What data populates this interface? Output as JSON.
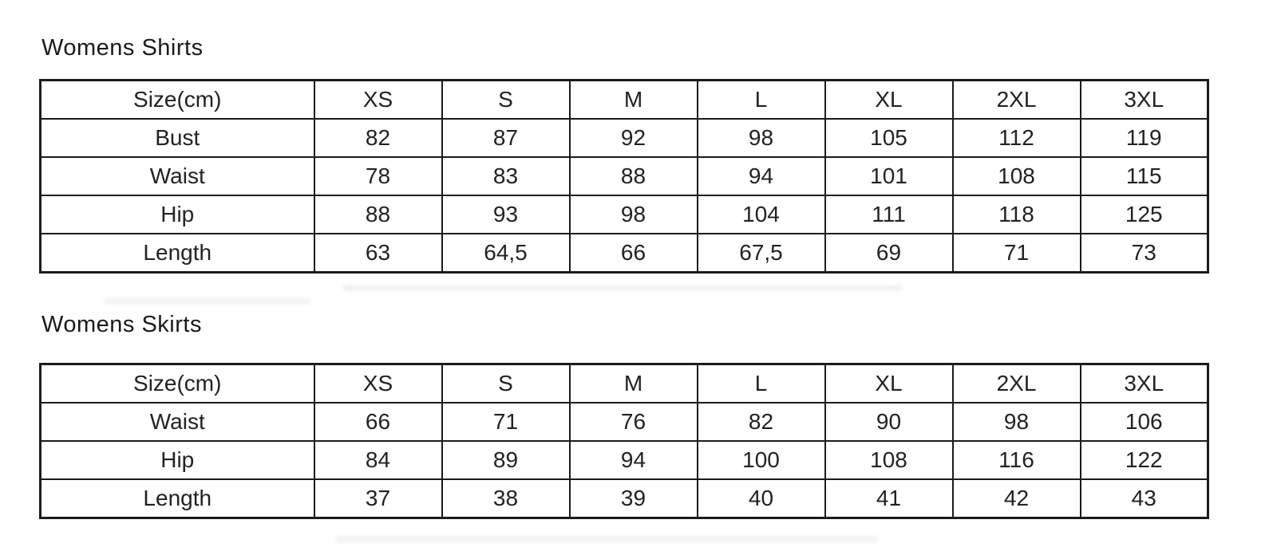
{
  "colors": {
    "background": "#ffffff",
    "text": "#222222",
    "border": "#1b1b1b"
  },
  "tables": [
    {
      "title": "Womens Shirts",
      "header": [
        "Size(cm)",
        "XS",
        "S",
        "M",
        "L",
        "XL",
        "2XL",
        "3XL"
      ],
      "rows": [
        {
          "label": "Bust",
          "values": [
            "82",
            "87",
            "92",
            "98",
            "105",
            "112",
            "119"
          ]
        },
        {
          "label": "Waist",
          "values": [
            "78",
            "83",
            "88",
            "94",
            "101",
            "108",
            "115"
          ]
        },
        {
          "label": "Hip",
          "values": [
            "88",
            "93",
            "98",
            "104",
            "111",
            "118",
            "125"
          ]
        },
        {
          "label": "Length",
          "values": [
            "63",
            "64,5",
            "66",
            "67,5",
            "69",
            "71",
            "73"
          ]
        }
      ]
    },
    {
      "title": "Womens Skirts",
      "header": [
        "Size(cm)",
        "XS",
        "S",
        "M",
        "L",
        "XL",
        "2XL",
        "3XL"
      ],
      "rows": [
        {
          "label": "Waist",
          "values": [
            "66",
            "71",
            "76",
            "82",
            "90",
            "98",
            "106"
          ]
        },
        {
          "label": "Hip",
          "values": [
            "84",
            "89",
            "94",
            "100",
            "108",
            "116",
            "122"
          ]
        },
        {
          "label": "Length",
          "values": [
            "37",
            "38",
            "39",
            "40",
            "41",
            "42",
            "43"
          ]
        }
      ]
    }
  ]
}
